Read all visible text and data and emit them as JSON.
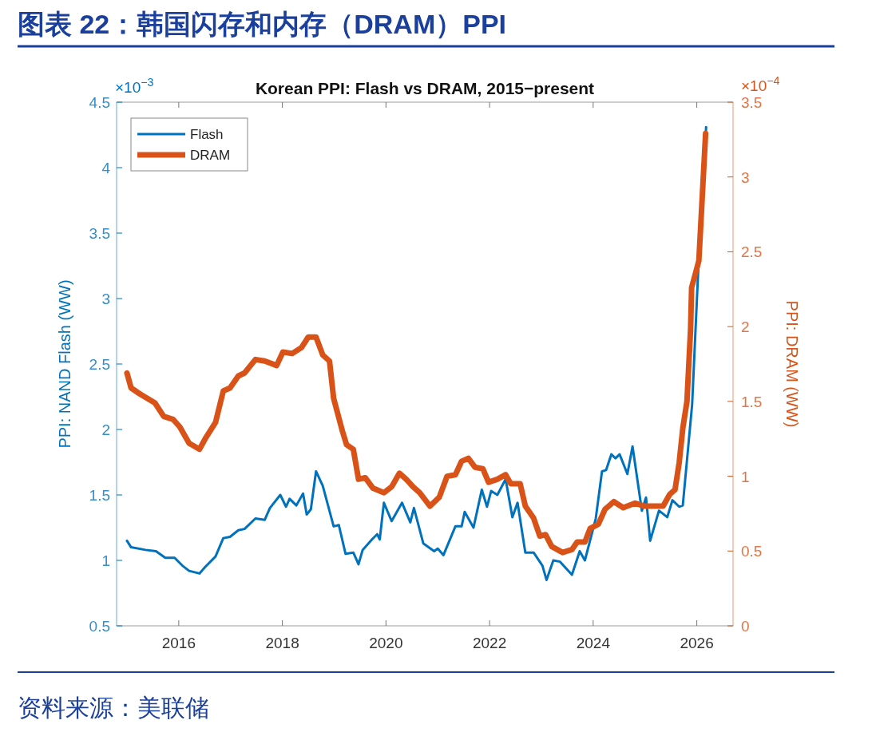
{
  "chart_data": {
    "type": "line",
    "title": "图表 22：韩国闪存和内存（DRAM）PPI",
    "subtitle": "Korean PPI: Flash vs DRAM, 2015−present",
    "ylabel": "PPI: NAND Flash (WW)",
    "y2label": "PPI: DRAM (WW)",
    "annotations": [
      "×10$^{−3}$",
      "×10$^{−4}$",
      "资料来源：美联储"
    ],
    "xlim": [
      2014.8,
      2026.7
    ],
    "xticks": [
      2016,
      2018,
      2020,
      2022,
      2024,
      2026
    ],
    "ylim": [
      0.5,
      4.5
    ],
    "yticks": [
      0.5,
      1,
      1.5,
      2,
      2.5,
      3,
      3.5,
      4,
      4.5
    ],
    "y2lim": [
      0,
      3.5
    ],
    "y2ticks": [
      0,
      0.5,
      1,
      1.5,
      2,
      2.5,
      3,
      3.5
    ],
    "grid": false,
    "legend": "top left",
    "series": [
      {
        "name": "Flash",
        "color": "#0072bd",
        "axis": "y",
        "x": [
          2015.0,
          2015.08,
          2015.36,
          2015.56,
          2015.74,
          2015.92,
          2016.07,
          2016.2,
          2016.4,
          2016.51,
          2016.71,
          2016.86,
          2016.99,
          2017.15,
          2017.27,
          2017.48,
          2017.66,
          2017.76,
          2017.96,
          2018.07,
          2018.14,
          2018.27,
          2018.4,
          2018.47,
          2018.55,
          2018.65,
          2018.78,
          2018.99,
          2019.09,
          2019.22,
          2019.37,
          2019.47,
          2019.55,
          2019.73,
          2019.83,
          2019.88,
          2019.96,
          2020.11,
          2020.31,
          2020.47,
          2020.54,
          2020.72,
          2020.93,
          2021.0,
          2021.11,
          2021.34,
          2021.46,
          2021.52,
          2021.69,
          2021.85,
          2021.95,
          2022.03,
          2022.15,
          2022.31,
          2022.44,
          2022.54,
          2022.69,
          2022.85,
          2023.02,
          2023.1,
          2023.23,
          2023.36,
          2023.59,
          2023.74,
          2023.84,
          2024.05,
          2024.17,
          2024.25,
          2024.35,
          2024.43,
          2024.51,
          2024.66,
          2024.76,
          2024.94,
          2025.02,
          2025.1,
          2025.27,
          2025.43,
          2025.53,
          2025.66,
          2025.73,
          2025.91,
          2026.02,
          2026.18
        ],
        "values": [
          1.15,
          1.1,
          1.08,
          1.07,
          1.02,
          1.02,
          0.96,
          0.92,
          0.9,
          0.95,
          1.03,
          1.17,
          1.18,
          1.23,
          1.24,
          1.32,
          1.31,
          1.4,
          1.5,
          1.41,
          1.47,
          1.42,
          1.51,
          1.35,
          1.39,
          1.68,
          1.57,
          1.26,
          1.27,
          1.05,
          1.06,
          0.97,
          1.08,
          1.16,
          1.2,
          1.16,
          1.44,
          1.3,
          1.44,
          1.29,
          1.4,
          1.13,
          1.07,
          1.09,
          1.04,
          1.26,
          1.26,
          1.37,
          1.25,
          1.54,
          1.41,
          1.53,
          1.5,
          1.62,
          1.33,
          1.44,
          1.06,
          1.06,
          0.96,
          0.85,
          1.0,
          0.99,
          0.89,
          1.07,
          1.0,
          1.32,
          1.68,
          1.69,
          1.81,
          1.78,
          1.81,
          1.66,
          1.87,
          1.38,
          1.48,
          1.15,
          1.38,
          1.33,
          1.46,
          1.41,
          1.42,
          2.19,
          3.15,
          4.31
        ]
      },
      {
        "name": "DRAM",
        "color": "#d95319",
        "axis": "y2",
        "x": [
          2015.0,
          2015.08,
          2015.25,
          2015.54,
          2015.71,
          2015.89,
          2016.02,
          2016.2,
          2016.4,
          2016.51,
          2016.71,
          2016.86,
          2016.99,
          2017.15,
          2017.27,
          2017.48,
          2017.66,
          2017.89,
          2018.01,
          2018.19,
          2018.37,
          2018.5,
          2018.65,
          2018.78,
          2018.91,
          2018.99,
          2019.16,
          2019.24,
          2019.37,
          2019.47,
          2019.6,
          2019.75,
          2019.96,
          2020.11,
          2020.26,
          2020.39,
          2020.52,
          2020.65,
          2020.85,
          2021.03,
          2021.18,
          2021.34,
          2021.46,
          2021.59,
          2021.72,
          2021.87,
          2021.98,
          2022.15,
          2022.31,
          2022.41,
          2022.59,
          2022.69,
          2022.85,
          2022.97,
          2023.08,
          2023.2,
          2023.41,
          2023.59,
          2023.69,
          2023.84,
          2023.94,
          2024.1,
          2024.23,
          2024.4,
          2024.58,
          2024.81,
          2024.99,
          2025.17,
          2025.35,
          2025.48,
          2025.58,
          2025.66,
          2025.73,
          2025.81,
          2025.88,
          2025.9,
          2026.04,
          2026.17
        ],
        "values": [
          1.69,
          1.59,
          1.55,
          1.49,
          1.4,
          1.38,
          1.33,
          1.22,
          1.18,
          1.25,
          1.36,
          1.57,
          1.59,
          1.67,
          1.69,
          1.78,
          1.77,
          1.74,
          1.83,
          1.82,
          1.86,
          1.93,
          1.93,
          1.81,
          1.77,
          1.52,
          1.3,
          1.21,
          1.18,
          0.98,
          0.99,
          0.92,
          0.89,
          0.93,
          1.02,
          0.98,
          0.93,
          0.89,
          0.8,
          0.86,
          1.0,
          1.01,
          1.1,
          1.12,
          1.06,
          1.05,
          0.96,
          0.98,
          1.01,
          0.95,
          0.95,
          0.8,
          0.72,
          0.6,
          0.61,
          0.53,
          0.49,
          0.51,
          0.56,
          0.56,
          0.65,
          0.68,
          0.78,
          0.83,
          0.79,
          0.82,
          0.8,
          0.8,
          0.8,
          0.88,
          0.91,
          1.09,
          1.32,
          1.5,
          1.98,
          2.26,
          2.44,
          3.29
        ]
      }
    ]
  }
}
